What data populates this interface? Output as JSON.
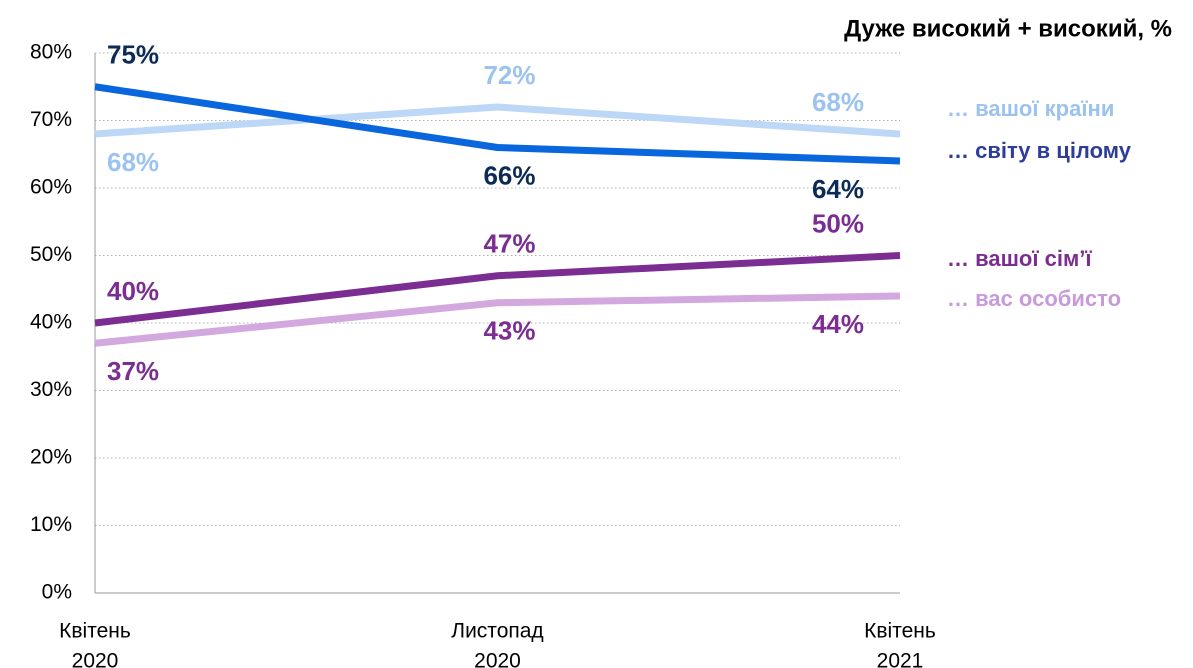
{
  "chart_data": {
    "type": "line",
    "annotation": "Дуже високий + високий, %",
    "categories": [
      [
        "Квітень",
        "2020"
      ],
      [
        "Листопад",
        "2020"
      ],
      [
        "Квітень",
        "2021"
      ]
    ],
    "series": [
      {
        "name": "… вашої країни",
        "color": "#bdd7f7",
        "label_color": "#9cc3f0",
        "legend_color": "#9cc3f0",
        "values": [
          68,
          72,
          68
        ],
        "value_labels": [
          "68%",
          "72%",
          "68%"
        ]
      },
      {
        "name": "… світу в цілому",
        "color": "#0a66dc",
        "label_color": "#0b2a55",
        "legend_color": "#2e3d99",
        "values": [
          75,
          66,
          64
        ],
        "value_labels": [
          "75%",
          "66%",
          "64%"
        ]
      },
      {
        "name": "… вашої сім’ї",
        "color": "#7b2d91",
        "label_color": "#7b2d91",
        "legend_color": "#7b2d91",
        "values": [
          40,
          47,
          50
        ],
        "value_labels": [
          "40%",
          "47%",
          "50%"
        ]
      },
      {
        "name": "… вас особисто",
        "color": "#d2a8de",
        "label_color": "#7b2d91",
        "legend_color": "#c99ad9",
        "values": [
          37,
          43,
          44
        ],
        "value_labels": [
          "37%",
          "43%",
          "44%"
        ]
      }
    ],
    "ylim": [
      0,
      80
    ],
    "yticks": [
      {
        "value": 0,
        "label": "0%"
      },
      {
        "value": 10,
        "label": "10%"
      },
      {
        "value": 20,
        "label": "20%"
      },
      {
        "value": 30,
        "label": "30%"
      },
      {
        "value": 40,
        "label": "40%"
      },
      {
        "value": 50,
        "label": "50%"
      },
      {
        "value": 60,
        "label": "60%"
      },
      {
        "value": 70,
        "label": "70%"
      },
      {
        "value": 80,
        "label": "80%"
      }
    ],
    "grid": true
  }
}
